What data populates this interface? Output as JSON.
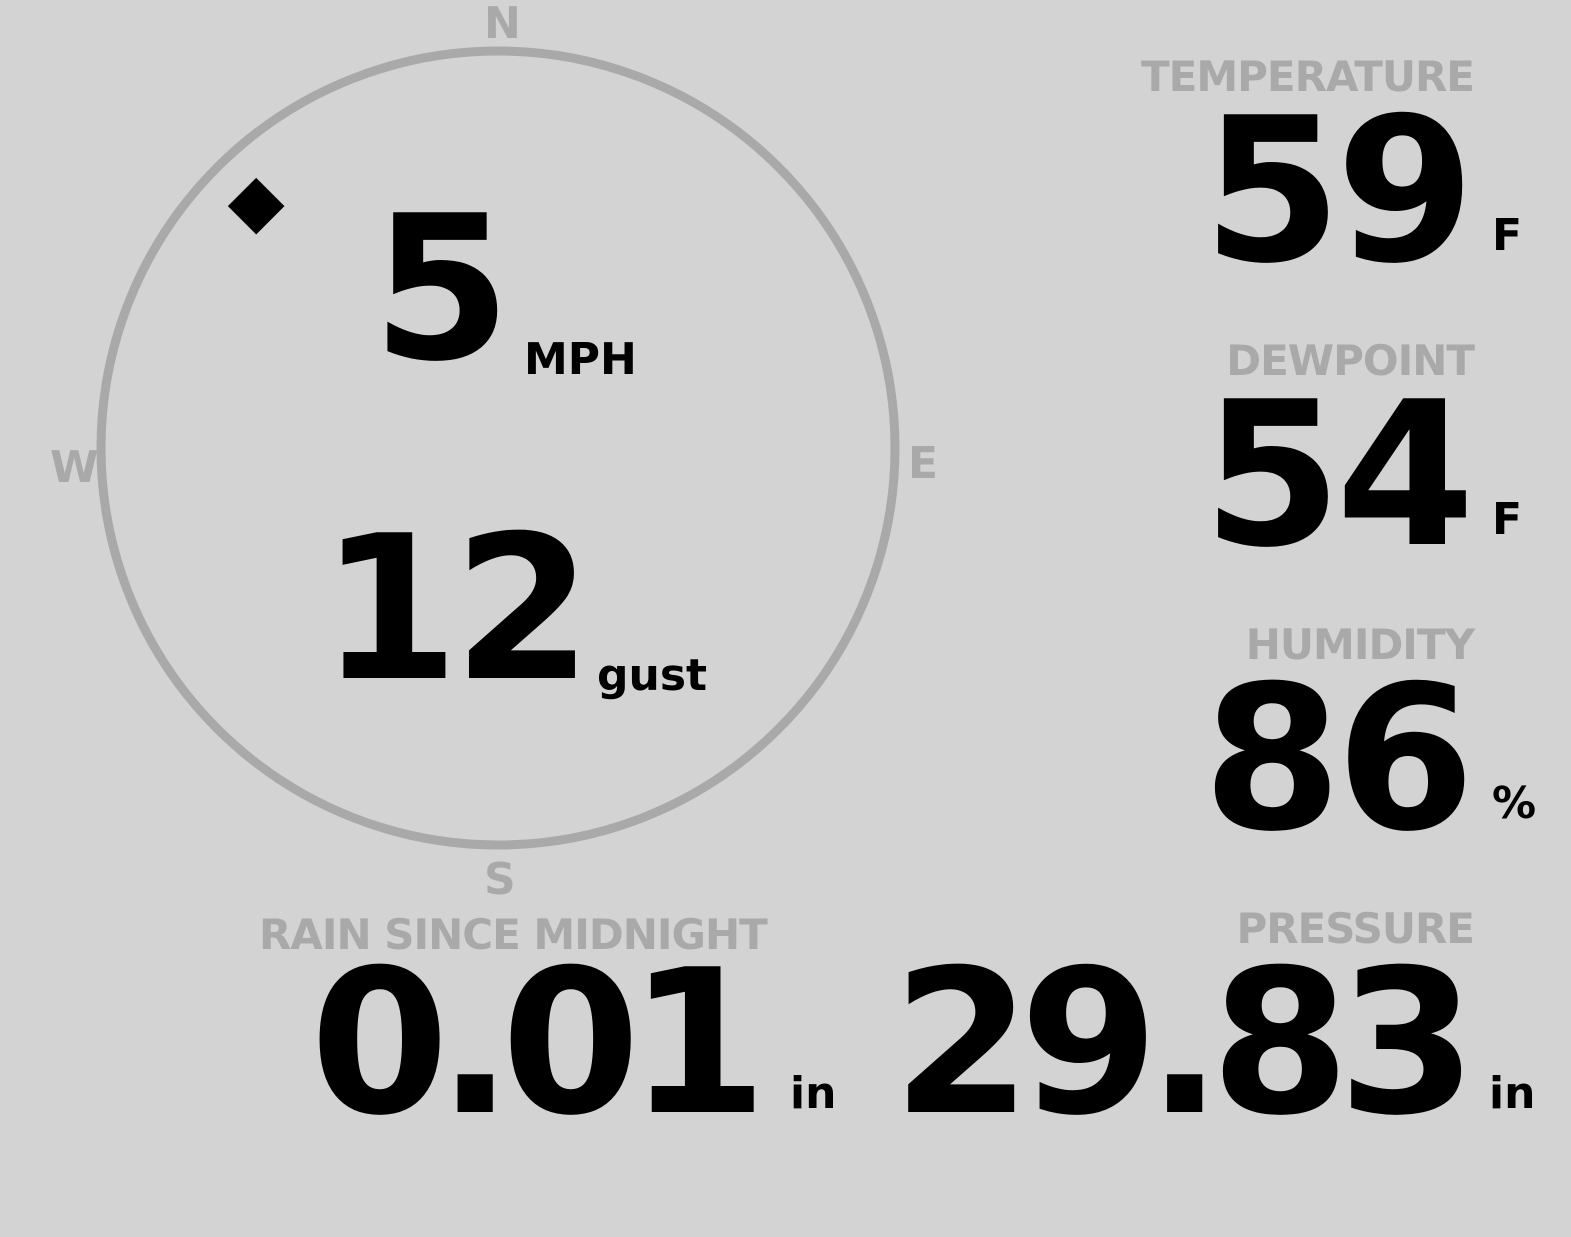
{
  "wind": {
    "direction_degrees": 315,
    "compass": {
      "n": "N",
      "e": "E",
      "s": "S",
      "w": "W"
    },
    "speed": "5",
    "speed_unit": "MPH",
    "gust": "12",
    "gust_unit": "gust"
  },
  "temperature": {
    "label": "TEMPERATURE",
    "value": "59",
    "unit": "F"
  },
  "dewpoint": {
    "label": "DEWPOINT",
    "value": "54",
    "unit": "F"
  },
  "humidity": {
    "label": "HUMIDITY",
    "value": "86",
    "unit": "%"
  },
  "rain": {
    "label": "RAIN SINCE MIDNIGHT",
    "value": "0.01",
    "unit": "in"
  },
  "pressure": {
    "label": "PRESSURE",
    "value": "29.83",
    "unit": "in"
  },
  "colors": {
    "background": "#d3d3d3",
    "muted": "#a9a9a9",
    "value": "#000000"
  }
}
